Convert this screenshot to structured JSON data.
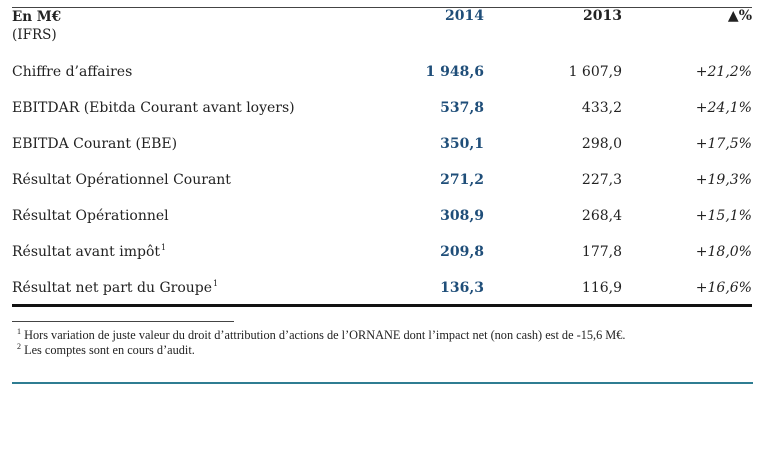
{
  "table": {
    "header": {
      "label_line1": "En M€",
      "label_line2": "(IFRS)",
      "col_2014": "2014",
      "col_2013": "2013",
      "col_var": "▲%"
    },
    "rows": [
      {
        "label": "Chiffre d’affaires",
        "sup": "",
        "v2014": "1 948,6",
        "v2013": "1 607,9",
        "var": "+21,2%"
      },
      {
        "label": "EBITDAR (Ebitda Courant avant loyers)",
        "sup": "",
        "v2014": "537,8",
        "v2013": "433,2",
        "var": "+24,1%"
      },
      {
        "label": "EBITDA Courant (EBE)",
        "sup": "",
        "v2014": "350,1",
        "v2013": "298,0",
        "var": "+17,5%"
      },
      {
        "label": "Résultat Opérationnel Courant",
        "sup": "",
        "v2014": "271,2",
        "v2013": "227,3",
        "var": "+19,3%"
      },
      {
        "label": "Résultat Opérationnel",
        "sup": "",
        "v2014": "308,9",
        "v2013": "268,4",
        "var": "+15,1%"
      },
      {
        "label": "Résultat avant impôt",
        "sup": "1",
        "v2014": "209,8",
        "v2013": "177,8",
        "var": "+18,0%"
      },
      {
        "label": "Résultat net part du Groupe",
        "sup": "1",
        "v2014": "136,3",
        "v2013": "116,9",
        "var": "+16,6%"
      }
    ]
  },
  "footnotes": [
    {
      "num": "1",
      "text": " Hors variation de juste valeur du droit d’attribution d’actions de l’ORNANE dont l’impact net (non cash) est de -15,6 M€."
    },
    {
      "num": "2",
      "text": " Les comptes sont en cours d’audit."
    }
  ],
  "colors": {
    "accent_blue": "#1f4e79",
    "teal_rule": "#2f7d92"
  }
}
